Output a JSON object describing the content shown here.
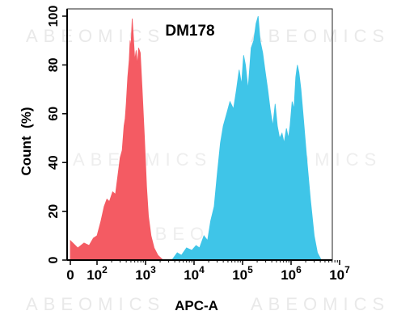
{
  "watermark": "ABEOMICS",
  "chart_data": {
    "type": "area",
    "title": "DM178",
    "xlabel": "APC-A",
    "ylabel": "Count  (%)",
    "x_scale": "biexponential",
    "x_ticks": [
      {
        "value": 0,
        "base": "0",
        "exp": ""
      },
      {
        "value": 100,
        "base": "10",
        "exp": "2"
      },
      {
        "value": 1000,
        "base": "10",
        "exp": "3"
      },
      {
        "value": 10000,
        "base": "10",
        "exp": "4"
      },
      {
        "value": 100000,
        "base": "10",
        "exp": "5"
      },
      {
        "value": 1000000,
        "base": "10",
        "exp": "6"
      },
      {
        "value": 10000000,
        "base": "10",
        "exp": "7"
      }
    ],
    "y_ticks": [
      0,
      20,
      40,
      60,
      80,
      100
    ],
    "ylim": [
      0,
      100
    ],
    "series": [
      {
        "color": "#f45b63",
        "points": [
          [
            0,
            0
          ],
          [
            0,
            8
          ],
          [
            10,
            5
          ],
          [
            25,
            7
          ],
          [
            45,
            6
          ],
          [
            70,
            9
          ],
          [
            100,
            10
          ],
          [
            120,
            16
          ],
          [
            140,
            22
          ],
          [
            160,
            25
          ],
          [
            180,
            24
          ],
          [
            210,
            28
          ],
          [
            240,
            27
          ],
          [
            270,
            35
          ],
          [
            300,
            42
          ],
          [
            330,
            45
          ],
          [
            360,
            55
          ],
          [
            380,
            58
          ],
          [
            400,
            64
          ],
          [
            430,
            75
          ],
          [
            460,
            82
          ],
          [
            480,
            90
          ],
          [
            500,
            87
          ],
          [
            530,
            99
          ],
          [
            560,
            92
          ],
          [
            600,
            82
          ],
          [
            640,
            86
          ],
          [
            680,
            80
          ],
          [
            720,
            87
          ],
          [
            780,
            85
          ],
          [
            850,
            70
          ],
          [
            950,
            50
          ],
          [
            1050,
            30
          ],
          [
            1150,
            18
          ],
          [
            1300,
            10
          ],
          [
            1500,
            5
          ],
          [
            1800,
            2
          ],
          [
            2300,
            0
          ]
        ]
      },
      {
        "color": "#3fc5e8",
        "points": [
          [
            3500,
            0
          ],
          [
            4500,
            3
          ],
          [
            5500,
            2
          ],
          [
            7000,
            5
          ],
          [
            9000,
            4
          ],
          [
            11000,
            6
          ],
          [
            13000,
            5
          ],
          [
            16000,
            10
          ],
          [
            19000,
            8
          ],
          [
            22000,
            16
          ],
          [
            26000,
            22
          ],
          [
            30000,
            35
          ],
          [
            35000,
            48
          ],
          [
            40000,
            55
          ],
          [
            47000,
            60
          ],
          [
            55000,
            65
          ],
          [
            65000,
            62
          ],
          [
            75000,
            70
          ],
          [
            85000,
            78
          ],
          [
            95000,
            72
          ],
          [
            105000,
            84
          ],
          [
            115000,
            80
          ],
          [
            130000,
            70
          ],
          [
            150000,
            87
          ],
          [
            170000,
            90
          ],
          [
            190000,
            97
          ],
          [
            210000,
            100
          ],
          [
            230000,
            90
          ],
          [
            260000,
            85
          ],
          [
            290000,
            78
          ],
          [
            330000,
            70
          ],
          [
            370000,
            62
          ],
          [
            420000,
            55
          ],
          [
            470000,
            64
          ],
          [
            520000,
            55
          ],
          [
            580000,
            50
          ],
          [
            650000,
            52
          ],
          [
            720000,
            48
          ],
          [
            800000,
            54
          ],
          [
            880000,
            50
          ],
          [
            950000,
            55
          ],
          [
            1050000,
            65
          ],
          [
            1150000,
            62
          ],
          [
            1250000,
            75
          ],
          [
            1350000,
            80
          ],
          [
            1450000,
            77
          ],
          [
            1600000,
            70
          ],
          [
            1800000,
            58
          ],
          [
            2100000,
            42
          ],
          [
            2500000,
            25
          ],
          [
            3000000,
            10
          ],
          [
            3500000,
            3
          ],
          [
            4200000,
            0
          ]
        ]
      }
    ]
  }
}
